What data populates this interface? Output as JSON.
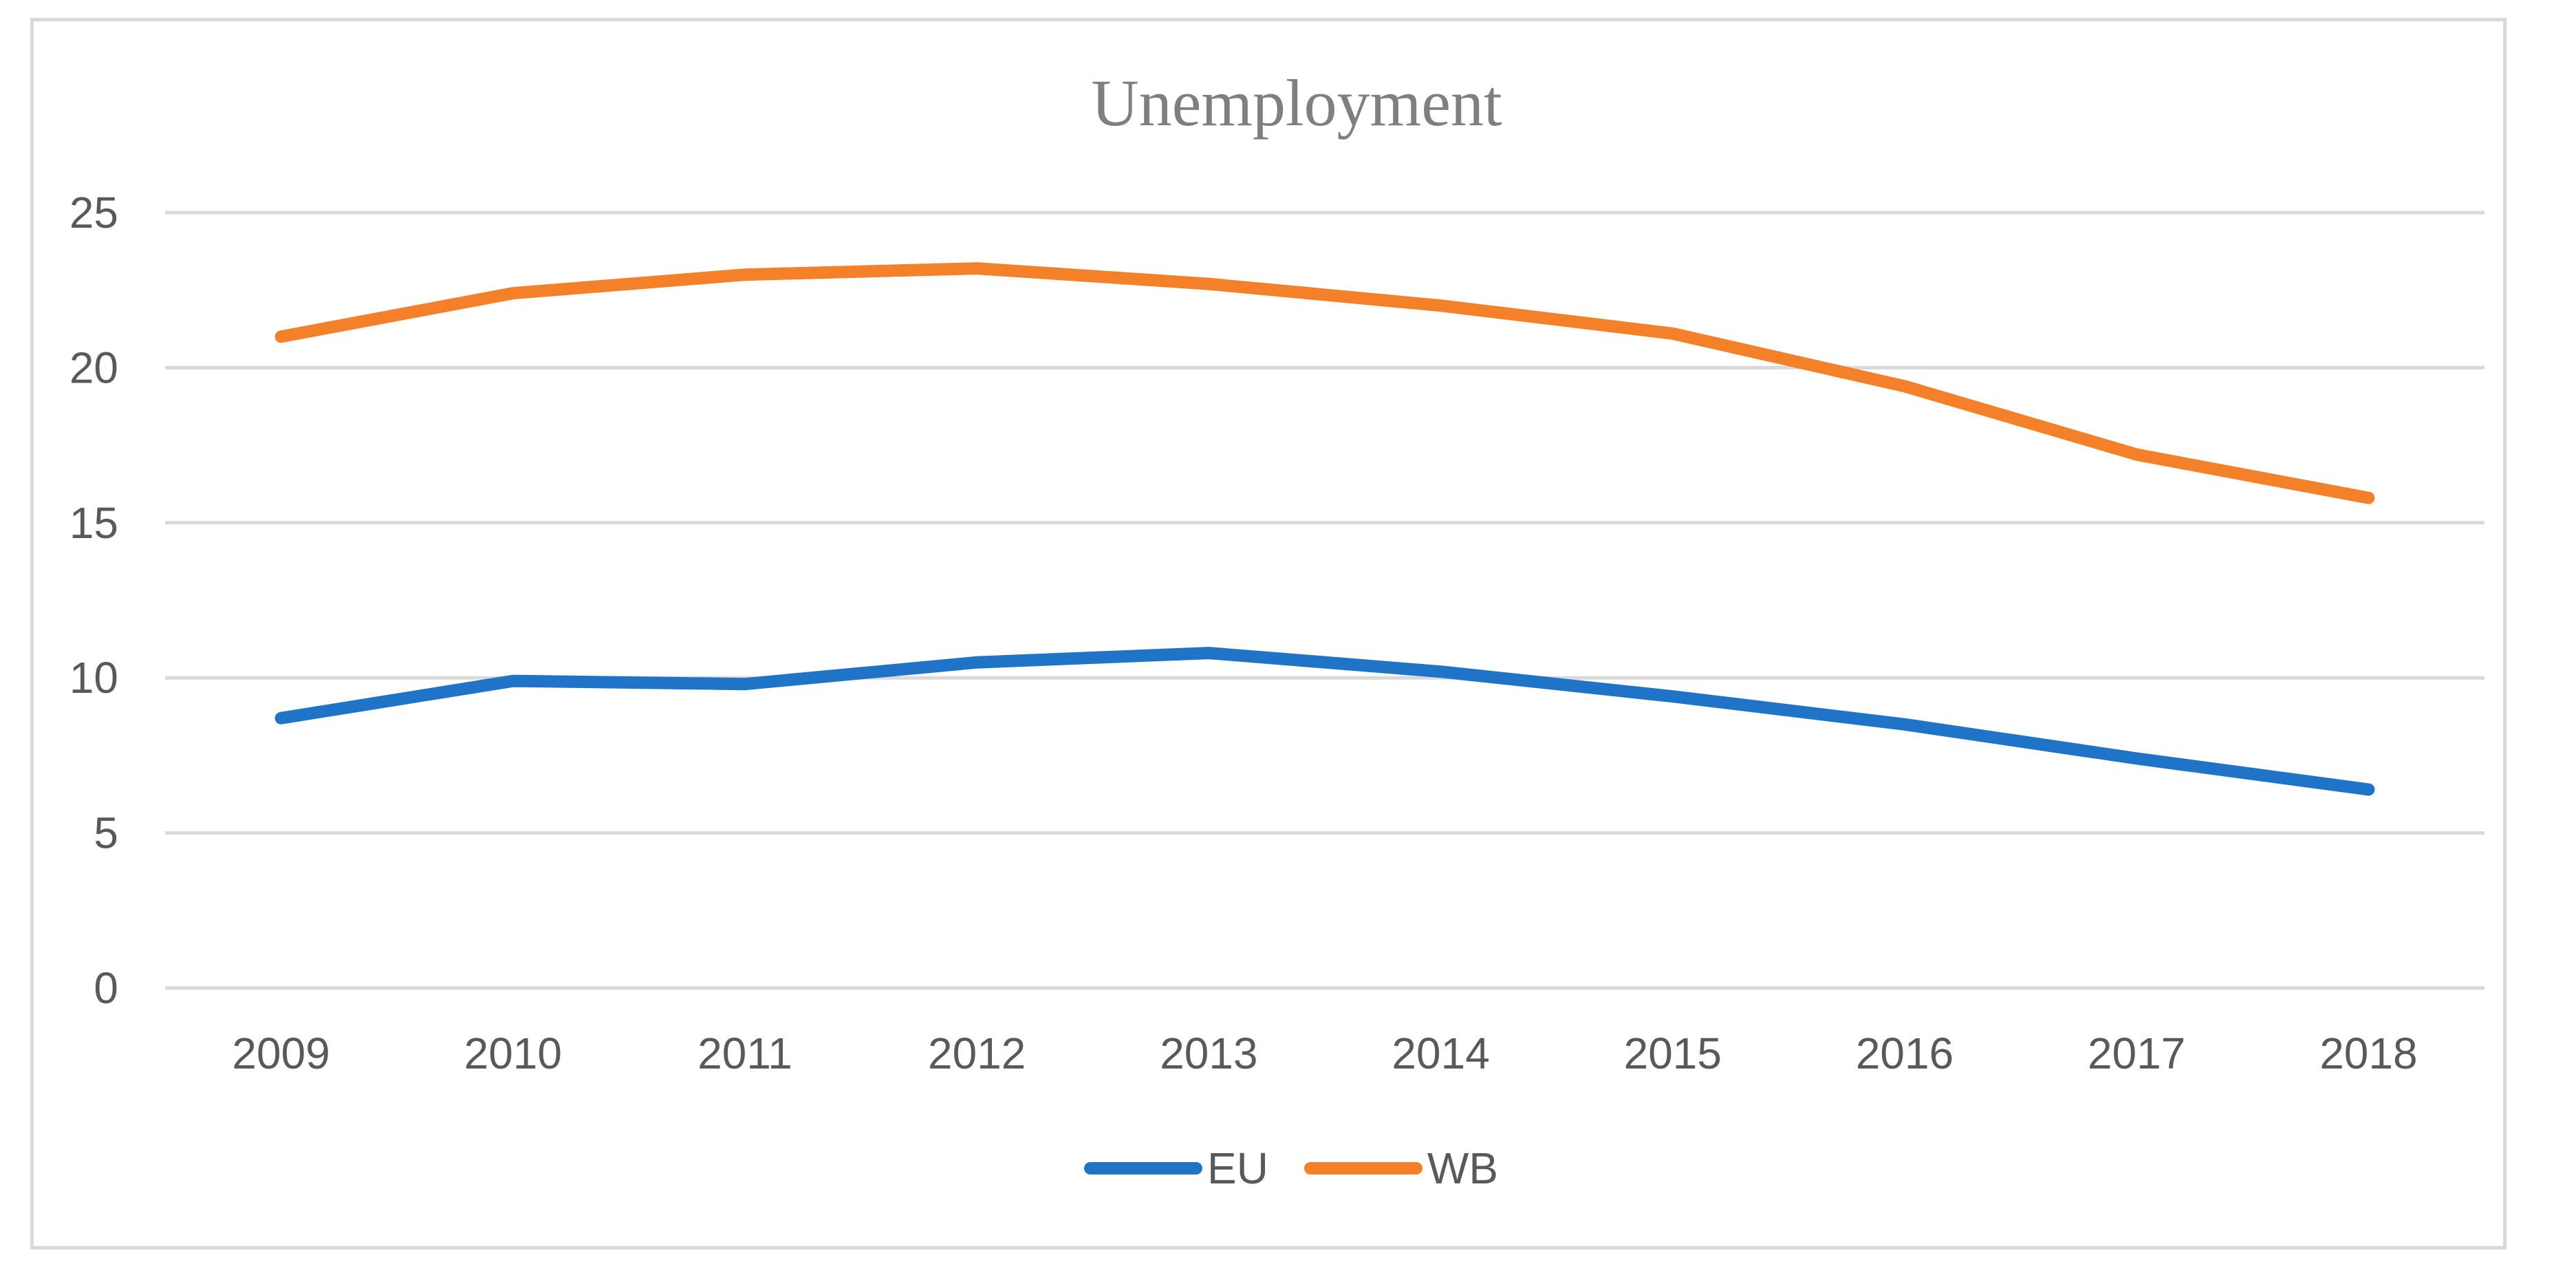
{
  "chart_data": {
    "type": "line",
    "title": "Unemployment",
    "xlabel": "",
    "ylabel": "",
    "categories": [
      "2009",
      "2010",
      "2011",
      "2012",
      "2013",
      "2014",
      "2015",
      "2016",
      "2017",
      "2018"
    ],
    "ylim": [
      0,
      25
    ],
    "yticks": [
      "0",
      "5",
      "10",
      "15",
      "20",
      "25"
    ],
    "grid": true,
    "legend_position": "bottom-center",
    "series": [
      {
        "name": "EU",
        "color": "#1f74c8",
        "values": [
          8.7,
          9.9,
          9.8,
          10.5,
          10.8,
          10.2,
          9.4,
          8.5,
          7.4,
          6.4
        ]
      },
      {
        "name": "WB",
        "color": "#f4812a",
        "values": [
          21.0,
          22.4,
          23.0,
          23.2,
          22.7,
          22.0,
          21.1,
          19.4,
          17.2,
          15.8
        ]
      }
    ]
  }
}
